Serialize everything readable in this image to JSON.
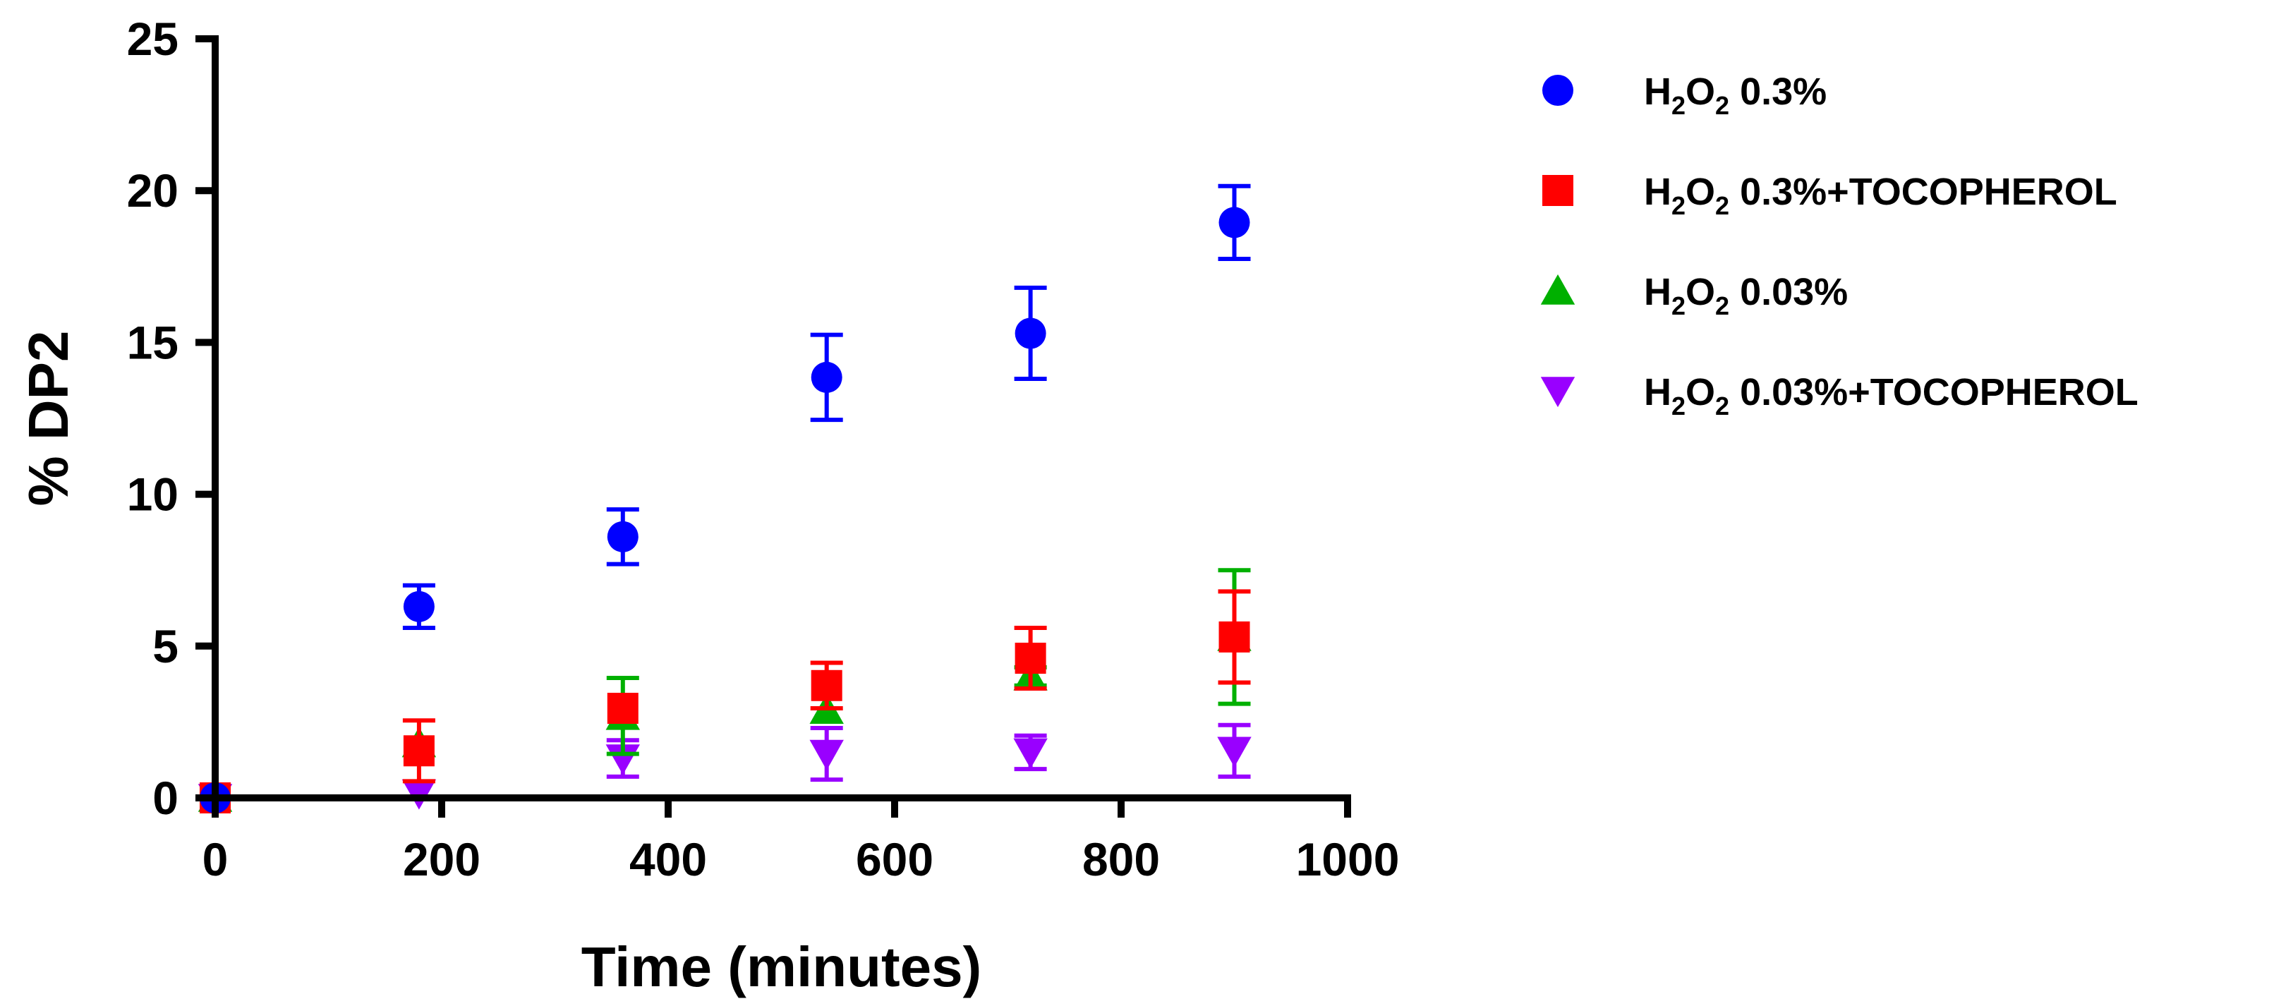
{
  "chart_data": {
    "type": "scatter",
    "xlabel": "Time (minutes)",
    "ylabel": "% DP2",
    "xlim": [
      0,
      1000
    ],
    "ylim": [
      0,
      25
    ],
    "x_ticks": [
      "0",
      "200",
      "400",
      "600",
      "800",
      "1000"
    ],
    "y_ticks": [
      "0",
      "5",
      "10",
      "15",
      "20",
      "25"
    ],
    "grid": false,
    "legend_position": "top-right, outside plot",
    "series": [
      {
        "name": "H2O2 0.3%",
        "label_parts": {
          "a": "H",
          "sub1": "2",
          "b": "O",
          "sub2": "2",
          "rest": " 0.3%"
        },
        "marker": "circle",
        "color": "#0000FF",
        "points": [
          {
            "x": 0,
            "y": 0.0,
            "err": 0.0
          },
          {
            "x": 180,
            "y": 6.3,
            "err": 0.7
          },
          {
            "x": 360,
            "y": 8.6,
            "err": 0.9
          },
          {
            "x": 540,
            "y": 13.85,
            "err": 1.4
          },
          {
            "x": 720,
            "y": 15.3,
            "err": 1.5
          },
          {
            "x": 900,
            "y": 18.95,
            "err": 1.2
          }
        ]
      },
      {
        "name": "H2O2 0.3%+TOCOPHEROL",
        "label_parts": {
          "a": "H",
          "sub1": "2",
          "b": "O",
          "sub2": "2",
          "rest": " 0.3%+TOCOPHEROL"
        },
        "marker": "square",
        "color": "#FF0000",
        "points": [
          {
            "x": 0,
            "y": 0.0,
            "err": 0.0
          },
          {
            "x": 180,
            "y": 1.55,
            "err": 1.0
          },
          {
            "x": 360,
            "y": 2.95,
            "err": 0.0
          },
          {
            "x": 540,
            "y": 3.7,
            "err": 0.75
          },
          {
            "x": 720,
            "y": 4.6,
            "err": 1.0
          },
          {
            "x": 900,
            "y": 5.3,
            "err": 1.5
          }
        ]
      },
      {
        "name": "H2O2 0.03%",
        "label_parts": {
          "a": "H",
          "sub1": "2",
          "b": "O",
          "sub2": "2",
          "rest": " 0.03%"
        },
        "marker": "triangle-up",
        "color": "#00B000",
        "points": [
          {
            "x": 0,
            "y": 0.0,
            "err": 0.0
          },
          {
            "x": 180,
            "y": 1.8,
            "err": 0.0
          },
          {
            "x": 360,
            "y": 2.7,
            "err": 1.25
          },
          {
            "x": 540,
            "y": 2.9,
            "err": 0.0
          },
          {
            "x": 720,
            "y": 4.0,
            "err": 0.3
          },
          {
            "x": 900,
            "y": 5.3,
            "err": 2.2
          }
        ]
      },
      {
        "name": "H2O2 0.03%+TOCOPHEROL",
        "label_parts": {
          "a": "H",
          "sub1": "2",
          "b": "O",
          "sub2": "2",
          "rest": " 0.03%+TOCOPHEROL"
        },
        "marker": "triangle-down",
        "color": "#9900FF",
        "points": [
          {
            "x": 0,
            "y": 0.0,
            "err": 0.0
          },
          {
            "x": 180,
            "y": 0.15,
            "err": 0.0
          },
          {
            "x": 360,
            "y": 1.3,
            "err": 0.6
          },
          {
            "x": 540,
            "y": 1.45,
            "err": 0.85
          },
          {
            "x": 720,
            "y": 1.5,
            "err": 0.55
          },
          {
            "x": 900,
            "y": 1.55,
            "err": 0.85
          }
        ]
      }
    ]
  }
}
